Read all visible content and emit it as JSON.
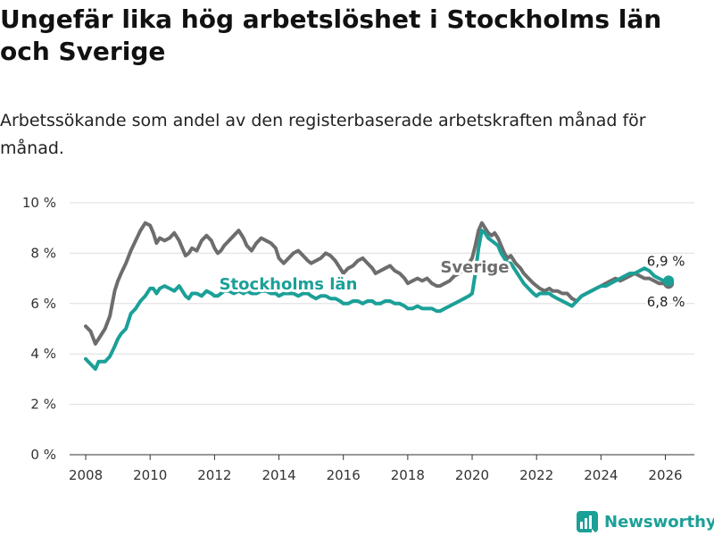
{
  "title": "Ungefär lika hög arbetslöshet i Stockholms län och Sverige",
  "subtitle": "Arbetssökande som andel av den registerbaserade arbetskraften månad för månad.",
  "brand": {
    "name": "Newsworthy",
    "icon": "newsworthy-logo-icon"
  },
  "colors": {
    "stockholm": "#1ba098",
    "sverige": "#6d6d6d",
    "grid": "#dddddd",
    "axis": "#333333"
  },
  "chart_data": {
    "type": "line",
    "title": "Ungefär lika hög arbetslöshet i Stockholms län och Sverige",
    "xlabel": "",
    "ylabel": "",
    "ylim": [
      0,
      10
    ],
    "xlim": [
      2007.5,
      2026.9
    ],
    "y_ticks": [
      0,
      2,
      4,
      6,
      8,
      10
    ],
    "y_tick_labels": [
      "0 %",
      "2 %",
      "4 %",
      "6 %",
      "8 %",
      "10 %"
    ],
    "x_ticks": [
      2008,
      2010,
      2012,
      2014,
      2016,
      2018,
      2020,
      2022,
      2024,
      2026
    ],
    "x_tick_labels": [
      "2008",
      "2010",
      "2012",
      "2014",
      "2016",
      "2018",
      "2020",
      "2022",
      "2024",
      "2026"
    ],
    "grid": true,
    "series": [
      {
        "name": "Sverige",
        "label": "Sverige",
        "end_label": "6,8 %",
        "color": "#6d6d6d",
        "x": [
          2008.0,
          2008.15,
          2008.3,
          2008.4,
          2008.6,
          2008.75,
          2008.9,
          2009.0,
          2009.1,
          2009.25,
          2009.4,
          2009.55,
          2009.7,
          2009.85,
          2010.0,
          2010.1,
          2010.2,
          2010.3,
          2010.45,
          2010.6,
          2010.75,
          2010.9,
          2011.0,
          2011.1,
          2011.2,
          2011.3,
          2011.45,
          2011.6,
          2011.75,
          2011.9,
          2012.0,
          2012.1,
          2012.2,
          2012.3,
          2012.45,
          2012.6,
          2012.75,
          2012.9,
          2013.0,
          2013.15,
          2013.3,
          2013.45,
          2013.6,
          2013.75,
          2013.9,
          2014.0,
          2014.15,
          2014.3,
          2014.45,
          2014.6,
          2014.75,
          2014.9,
          2015.0,
          2015.15,
          2015.3,
          2015.45,
          2015.6,
          2015.75,
          2015.9,
          2016.0,
          2016.15,
          2016.3,
          2016.45,
          2016.6,
          2016.75,
          2016.9,
          2017.0,
          2017.15,
          2017.3,
          2017.45,
          2017.6,
          2017.75,
          2017.9,
          2018.0,
          2018.15,
          2018.3,
          2018.45,
          2018.6,
          2018.75,
          2018.9,
          2019.0,
          2019.15,
          2019.3,
          2019.45,
          2019.6,
          2019.75,
          2019.9,
          2020.0,
          2020.1,
          2020.2,
          2020.3,
          2020.4,
          2020.5,
          2020.6,
          2020.7,
          2020.8,
          2020.9,
          2021.0,
          2021.1,
          2021.2,
          2021.35,
          2021.5,
          2021.6,
          2021.75,
          2021.9,
          2022.0,
          2022.1,
          2022.25,
          2022.4,
          2022.5,
          2022.65,
          2022.8,
          2022.95,
          2023.1,
          2023.25,
          2023.4,
          2023.55,
          2023.7,
          2023.85,
          2024.0,
          2024.15,
          2024.3,
          2024.45,
          2024.6,
          2024.75,
          2024.9,
          2025.05,
          2025.2,
          2025.35,
          2025.5,
          2025.65,
          2025.8,
          2025.95,
          2026.1
        ],
        "y": [
          5.1,
          4.9,
          4.4,
          4.6,
          5.0,
          5.5,
          6.5,
          6.9,
          7.2,
          7.6,
          8.1,
          8.5,
          8.9,
          9.2,
          9.1,
          8.8,
          8.4,
          8.6,
          8.5,
          8.6,
          8.8,
          8.5,
          8.2,
          7.9,
          8.0,
          8.2,
          8.1,
          8.5,
          8.7,
          8.5,
          8.2,
          8.0,
          8.1,
          8.3,
          8.5,
          8.7,
          8.9,
          8.6,
          8.3,
          8.1,
          8.4,
          8.6,
          8.5,
          8.4,
          8.2,
          7.8,
          7.6,
          7.8,
          8.0,
          8.1,
          7.9,
          7.7,
          7.6,
          7.7,
          7.8,
          8.0,
          7.9,
          7.7,
          7.4,
          7.2,
          7.4,
          7.5,
          7.7,
          7.8,
          7.6,
          7.4,
          7.2,
          7.3,
          7.4,
          7.5,
          7.3,
          7.2,
          7.0,
          6.8,
          6.9,
          7.0,
          6.9,
          7.0,
          6.8,
          6.7,
          6.7,
          6.8,
          6.9,
          7.1,
          7.2,
          7.4,
          7.6,
          7.8,
          8.3,
          8.9,
          9.2,
          9.0,
          8.8,
          8.7,
          8.8,
          8.6,
          8.3,
          8.0,
          7.8,
          7.9,
          7.6,
          7.4,
          7.2,
          7.0,
          6.8,
          6.7,
          6.6,
          6.5,
          6.6,
          6.5,
          6.5,
          6.4,
          6.4,
          6.2,
          6.1,
          6.3,
          6.4,
          6.5,
          6.6,
          6.7,
          6.8,
          6.9,
          7.0,
          6.9,
          7.0,
          7.1,
          7.2,
          7.1,
          7.0,
          7.0,
          6.9,
          6.8,
          6.8,
          6.8
        ]
      },
      {
        "name": "Stockholms län",
        "label": "Stockholms län",
        "end_label": "6,9 %",
        "color": "#1ba098",
        "x": [
          2008.0,
          2008.15,
          2008.3,
          2008.4,
          2008.6,
          2008.75,
          2008.9,
          2009.0,
          2009.1,
          2009.25,
          2009.4,
          2009.55,
          2009.7,
          2009.85,
          2010.0,
          2010.1,
          2010.2,
          2010.3,
          2010.45,
          2010.6,
          2010.75,
          2010.9,
          2011.0,
          2011.1,
          2011.2,
          2011.3,
          2011.45,
          2011.6,
          2011.75,
          2011.9,
          2012.0,
          2012.1,
          2012.2,
          2012.3,
          2012.45,
          2012.6,
          2012.75,
          2012.9,
          2013.0,
          2013.15,
          2013.3,
          2013.45,
          2013.6,
          2013.75,
          2013.9,
          2014.0,
          2014.15,
          2014.3,
          2014.45,
          2014.6,
          2014.75,
          2014.9,
          2015.0,
          2015.15,
          2015.3,
          2015.45,
          2015.6,
          2015.75,
          2015.9,
          2016.0,
          2016.15,
          2016.3,
          2016.45,
          2016.6,
          2016.75,
          2016.9,
          2017.0,
          2017.15,
          2017.3,
          2017.45,
          2017.6,
          2017.75,
          2017.9,
          2018.0,
          2018.15,
          2018.3,
          2018.45,
          2018.6,
          2018.75,
          2018.9,
          2019.0,
          2019.15,
          2019.3,
          2019.45,
          2019.6,
          2019.75,
          2019.9,
          2020.0,
          2020.1,
          2020.2,
          2020.3,
          2020.4,
          2020.5,
          2020.6,
          2020.7,
          2020.8,
          2020.9,
          2021.0,
          2021.1,
          2021.2,
          2021.35,
          2021.5,
          2021.6,
          2021.75,
          2021.9,
          2022.0,
          2022.1,
          2022.25,
          2022.4,
          2022.5,
          2022.65,
          2022.8,
          2022.95,
          2023.1,
          2023.25,
          2023.4,
          2023.55,
          2023.7,
          2023.85,
          2024.0,
          2024.15,
          2024.3,
          2024.45,
          2024.6,
          2024.75,
          2024.9,
          2025.05,
          2025.2,
          2025.35,
          2025.5,
          2025.65,
          2025.8,
          2025.95,
          2026.1
        ],
        "y": [
          3.8,
          3.6,
          3.4,
          3.7,
          3.7,
          3.9,
          4.3,
          4.6,
          4.8,
          5.0,
          5.6,
          5.8,
          6.1,
          6.3,
          6.6,
          6.6,
          6.4,
          6.6,
          6.7,
          6.6,
          6.5,
          6.7,
          6.5,
          6.3,
          6.2,
          6.4,
          6.4,
          6.3,
          6.5,
          6.4,
          6.3,
          6.3,
          6.4,
          6.5,
          6.5,
          6.4,
          6.5,
          6.4,
          6.5,
          6.4,
          6.4,
          6.5,
          6.5,
          6.4,
          6.4,
          6.3,
          6.4,
          6.4,
          6.4,
          6.3,
          6.4,
          6.4,
          6.3,
          6.2,
          6.3,
          6.3,
          6.2,
          6.2,
          6.1,
          6.0,
          6.0,
          6.1,
          6.1,
          6.0,
          6.1,
          6.1,
          6.0,
          6.0,
          6.1,
          6.1,
          6.0,
          6.0,
          5.9,
          5.8,
          5.8,
          5.9,
          5.8,
          5.8,
          5.8,
          5.7,
          5.7,
          5.8,
          5.9,
          6.0,
          6.1,
          6.2,
          6.3,
          6.4,
          7.2,
          8.2,
          8.9,
          8.8,
          8.6,
          8.5,
          8.4,
          8.3,
          8.0,
          7.8,
          7.6,
          7.6,
          7.3,
          7.0,
          6.8,
          6.6,
          6.4,
          6.3,
          6.4,
          6.4,
          6.4,
          6.3,
          6.2,
          6.1,
          6.0,
          5.9,
          6.1,
          6.3,
          6.4,
          6.5,
          6.6,
          6.7,
          6.7,
          6.8,
          6.9,
          7.0,
          7.1,
          7.2,
          7.2,
          7.3,
          7.4,
          7.3,
          7.1,
          7.0,
          6.9,
          6.9
        ]
      }
    ]
  }
}
